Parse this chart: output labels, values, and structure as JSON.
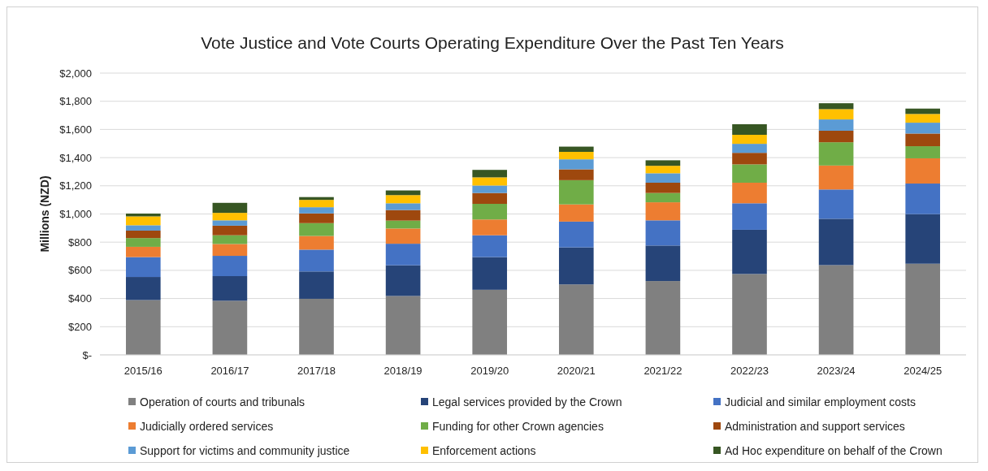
{
  "chart_data": {
    "type": "bar",
    "stacked": true,
    "title": "Vote Justice and Vote Courts Operating Expenditure Over the Past Ten Years",
    "ylabel": "Millions (NZD)",
    "categories": [
      "2015/16",
      "2016/17",
      "2017/18",
      "2018/19",
      "2019/20",
      "2020/21",
      "2021/22",
      "2022/23",
      "2023/24",
      "2024/25"
    ],
    "series": [
      {
        "name": "Operation of courts and tribunals",
        "color": "#808080",
        "values": [
          389,
          384,
          398,
          418,
          462,
          500,
          524,
          574,
          637,
          647
        ]
      },
      {
        "name": "Legal services provided by the Crown",
        "color": "#264478",
        "values": [
          164,
          175,
          194,
          218,
          232,
          263,
          252,
          314,
          329,
          352
        ]
      },
      {
        "name": "Judicial and similar employment costs",
        "color": "#4472c4",
        "values": [
          141,
          144,
          155,
          153,
          155,
          183,
          179,
          188,
          208,
          217
        ]
      },
      {
        "name": "Judicially ordered services",
        "color": "#ed7d31",
        "values": [
          73,
          84,
          97,
          108,
          112,
          122,
          128,
          146,
          170,
          179
        ]
      },
      {
        "name": "Funding for other Crown agencies",
        "color": "#70ad47",
        "values": [
          62,
          62,
          91,
          56,
          111,
          172,
          66,
          130,
          165,
          86
        ]
      },
      {
        "name": "Administration and support services",
        "color": "#9e480e",
        "values": [
          53,
          68,
          69,
          75,
          77,
          77,
          73,
          82,
          82,
          90
        ]
      },
      {
        "name": "Support for victims and community justice",
        "color": "#5b9bd5",
        "values": [
          38,
          38,
          44,
          48,
          53,
          71,
          67,
          64,
          80,
          77
        ]
      },
      {
        "name": "Enforcement actions",
        "color": "#ffc000",
        "values": [
          63,
          53,
          52,
          58,
          58,
          53,
          53,
          64,
          73,
          62
        ]
      },
      {
        "name": "Ad Hoc expenditure on behalf of the Crown",
        "color": "#375623",
        "values": [
          20,
          71,
          20,
          33,
          53,
          37,
          39,
          75,
          42,
          38
        ]
      }
    ],
    "ylim": [
      0,
      2000
    ],
    "yticks": [
      {
        "value": 0,
        "label": "$-"
      },
      {
        "value": 200,
        "label": "$200"
      },
      {
        "value": 400,
        "label": "$400"
      },
      {
        "value": 600,
        "label": "$600"
      },
      {
        "value": 800,
        "label": "$800"
      },
      {
        "value": 1000,
        "label": "$1,000"
      },
      {
        "value": 1200,
        "label": "$1,200"
      },
      {
        "value": 1400,
        "label": "$1,400"
      },
      {
        "value": 1600,
        "label": "$1,600"
      },
      {
        "value": 1800,
        "label": "$1,800"
      },
      {
        "value": 2000,
        "label": "$2,000"
      }
    ],
    "grid": "y",
    "legend": "bottom"
  }
}
